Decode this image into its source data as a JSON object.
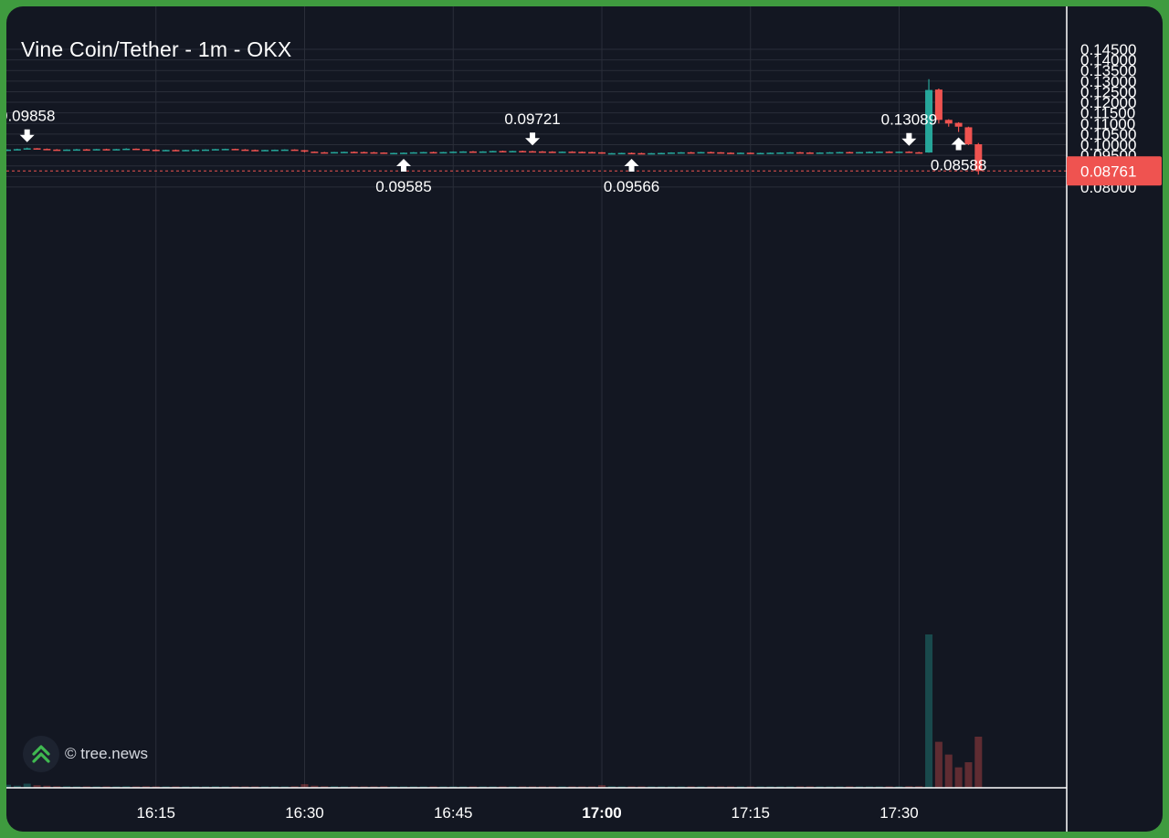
{
  "header": {
    "title": "Vine Coin/Tether - 1m - OKX"
  },
  "watermark": {
    "text": "© tree.news",
    "icon": "double-chevron-up-icon",
    "icon_color": "#3fb950"
  },
  "colors": {
    "background": "#131722",
    "frame": "#3f9b3f",
    "grid": "#2a2e39",
    "up": "#26a69a",
    "down": "#ef5350",
    "text": "#d1d4dc"
  },
  "chart_data": {
    "type": "candlestick",
    "timeframe": "1m",
    "x_ticks": [
      "16:15",
      "16:30",
      "16:45",
      "17:00",
      "17:15",
      "17:30"
    ],
    "x_tick_bold": "17:00",
    "y_ticks": [
      "0.14500",
      "0.14000",
      "0.13500",
      "0.13000",
      "0.12500",
      "0.12000",
      "0.11500",
      "0.11000",
      "0.10500",
      "0.10000",
      "0.09500",
      "0.09000",
      "0.08500",
      "0.08000"
    ],
    "y_range": [
      0.0753,
      0.147
    ],
    "current_price": {
      "value": 0.08761,
      "label": "0.08761"
    },
    "annotations": [
      {
        "label": "0.09858",
        "time": "16:02",
        "kind": "high"
      },
      {
        "label": "0.09585",
        "time": "16:40",
        "kind": "low"
      },
      {
        "label": "0.09721",
        "time": "16:53",
        "kind": "high"
      },
      {
        "label": "0.09566",
        "time": "17:03",
        "kind": "low"
      },
      {
        "label": "0.13089",
        "time": "17:31",
        "kind": "high"
      },
      {
        "label": "0.08588",
        "time": "17:36",
        "kind": "low"
      }
    ],
    "start_time": "16:00",
    "candles": [
      [
        0.0972,
        0.0978,
        0.097,
        0.0977,
        0.6
      ],
      [
        0.0977,
        0.0981,
        0.0975,
        0.0979,
        0.4
      ],
      [
        0.0979,
        0.0986,
        0.0978,
        0.0983,
        0.8
      ],
      [
        0.0983,
        0.0984,
        0.0979,
        0.098,
        0.5
      ],
      [
        0.098,
        0.0982,
        0.0976,
        0.0977,
        0.4
      ],
      [
        0.0977,
        0.0979,
        0.0974,
        0.0975,
        0.3
      ],
      [
        0.0975,
        0.0978,
        0.0973,
        0.0977,
        0.3
      ],
      [
        0.0977,
        0.098,
        0.0975,
        0.0978,
        0.2
      ],
      [
        0.0978,
        0.098,
        0.0976,
        0.0977,
        0.2
      ],
      [
        0.0977,
        0.098,
        0.0975,
        0.0979,
        0.2
      ],
      [
        0.0979,
        0.0981,
        0.0977,
        0.0978,
        0.2
      ],
      [
        0.0978,
        0.098,
        0.0976,
        0.0979,
        0.2
      ],
      [
        0.0979,
        0.0983,
        0.0978,
        0.0981,
        0.3
      ],
      [
        0.0981,
        0.0982,
        0.0977,
        0.0978,
        0.2
      ],
      [
        0.0978,
        0.0979,
        0.0975,
        0.0976,
        0.3
      ],
      [
        0.0976,
        0.0978,
        0.0973,
        0.0974,
        0.2
      ],
      [
        0.0974,
        0.0976,
        0.0972,
        0.0975,
        0.2
      ],
      [
        0.0975,
        0.0977,
        0.0973,
        0.0974,
        0.2
      ],
      [
        0.0974,
        0.0976,
        0.0972,
        0.0975,
        0.2
      ],
      [
        0.0975,
        0.0978,
        0.0973,
        0.0976,
        0.2
      ],
      [
        0.0976,
        0.0978,
        0.0974,
        0.0977,
        0.2
      ],
      [
        0.0977,
        0.098,
        0.0975,
        0.0979,
        0.3
      ],
      [
        0.0979,
        0.0981,
        0.0977,
        0.098,
        0.2
      ],
      [
        0.098,
        0.0981,
        0.0976,
        0.0977,
        0.2
      ],
      [
        0.0977,
        0.0979,
        0.0974,
        0.0975,
        0.2
      ],
      [
        0.0975,
        0.0977,
        0.0973,
        0.0974,
        0.2
      ],
      [
        0.0974,
        0.0976,
        0.0972,
        0.0975,
        0.2
      ],
      [
        0.0975,
        0.0977,
        0.0973,
        0.0976,
        0.2
      ],
      [
        0.0976,
        0.0978,
        0.0974,
        0.0977,
        0.2
      ],
      [
        0.0977,
        0.0978,
        0.0973,
        0.0974,
        0.3
      ],
      [
        0.0974,
        0.0975,
        0.0964,
        0.0967,
        0.7
      ],
      [
        0.0967,
        0.0968,
        0.0962,
        0.0964,
        0.4
      ],
      [
        0.0964,
        0.0966,
        0.0961,
        0.0962,
        0.3
      ],
      [
        0.0962,
        0.0966,
        0.0961,
        0.0965,
        0.3
      ],
      [
        0.0965,
        0.0967,
        0.0963,
        0.0966,
        0.2
      ],
      [
        0.0966,
        0.0968,
        0.0964,
        0.0965,
        0.2
      ],
      [
        0.0965,
        0.0967,
        0.0963,
        0.0964,
        0.2
      ],
      [
        0.0964,
        0.0966,
        0.0962,
        0.0963,
        0.2
      ],
      [
        0.0963,
        0.0964,
        0.0959,
        0.096,
        0.3
      ],
      [
        0.096,
        0.0962,
        0.0958,
        0.0961,
        0.2
      ],
      [
        0.0961,
        0.0963,
        0.0959,
        0.0962,
        0.2
      ],
      [
        0.0962,
        0.0965,
        0.0961,
        0.0964,
        0.2
      ],
      [
        0.0964,
        0.0966,
        0.0962,
        0.0965,
        0.2
      ],
      [
        0.0965,
        0.0967,
        0.0963,
        0.0964,
        0.2
      ],
      [
        0.0964,
        0.0966,
        0.0962,
        0.0965,
        0.2
      ],
      [
        0.0965,
        0.0968,
        0.0964,
        0.0967,
        0.2
      ],
      [
        0.0967,
        0.0969,
        0.0965,
        0.0968,
        0.2
      ],
      [
        0.0968,
        0.097,
        0.0966,
        0.0967,
        0.2
      ],
      [
        0.0967,
        0.0969,
        0.0965,
        0.0968,
        0.2
      ],
      [
        0.0968,
        0.0971,
        0.0967,
        0.097,
        0.2
      ],
      [
        0.097,
        0.0972,
        0.0968,
        0.0969,
        0.2
      ],
      [
        0.0969,
        0.0971,
        0.0967,
        0.097,
        0.2
      ],
      [
        0.097,
        0.0972,
        0.0968,
        0.0969,
        0.2
      ],
      [
        0.0969,
        0.0971,
        0.0967,
        0.0968,
        0.2
      ],
      [
        0.0968,
        0.097,
        0.0966,
        0.0967,
        0.2
      ],
      [
        0.0967,
        0.0969,
        0.0965,
        0.0966,
        0.2
      ],
      [
        0.0966,
        0.0968,
        0.0964,
        0.0967,
        0.2
      ],
      [
        0.0967,
        0.0969,
        0.0965,
        0.0966,
        0.2
      ],
      [
        0.0966,
        0.0968,
        0.0964,
        0.0965,
        0.2
      ],
      [
        0.0965,
        0.0967,
        0.0963,
        0.0964,
        0.2
      ],
      [
        0.0964,
        0.0965,
        0.0957,
        0.0958,
        0.5
      ],
      [
        0.0958,
        0.0961,
        0.0956,
        0.096,
        0.3
      ],
      [
        0.096,
        0.0962,
        0.0958,
        0.0961,
        0.2
      ],
      [
        0.0961,
        0.0963,
        0.0959,
        0.096,
        0.2
      ],
      [
        0.096,
        0.0962,
        0.0958,
        0.0959,
        0.2
      ],
      [
        0.0959,
        0.0961,
        0.0957,
        0.096,
        0.2
      ],
      [
        0.096,
        0.0962,
        0.0958,
        0.0961,
        0.2
      ],
      [
        0.0961,
        0.0964,
        0.096,
        0.0963,
        0.2
      ],
      [
        0.0963,
        0.0965,
        0.0961,
        0.0964,
        0.2
      ],
      [
        0.0964,
        0.0966,
        0.0962,
        0.0963,
        0.2
      ],
      [
        0.0963,
        0.0966,
        0.0962,
        0.0965,
        0.2
      ],
      [
        0.0965,
        0.0967,
        0.0963,
        0.0964,
        0.2
      ],
      [
        0.0964,
        0.0965,
        0.0961,
        0.0962,
        0.2
      ],
      [
        0.0962,
        0.0964,
        0.096,
        0.0961,
        0.2
      ],
      [
        0.0961,
        0.0963,
        0.0959,
        0.0962,
        0.2
      ],
      [
        0.0962,
        0.0963,
        0.0959,
        0.096,
        0.2
      ],
      [
        0.096,
        0.0962,
        0.0958,
        0.0961,
        0.2
      ],
      [
        0.0961,
        0.0963,
        0.0959,
        0.0962,
        0.2
      ],
      [
        0.0962,
        0.0964,
        0.096,
        0.0963,
        0.2
      ],
      [
        0.0963,
        0.0965,
        0.0961,
        0.0964,
        0.2
      ],
      [
        0.0964,
        0.0966,
        0.0962,
        0.0963,
        0.2
      ],
      [
        0.0963,
        0.0965,
        0.0961,
        0.0962,
        0.2
      ],
      [
        0.0962,
        0.0964,
        0.096,
        0.0963,
        0.2
      ],
      [
        0.0963,
        0.0965,
        0.0961,
        0.0964,
        0.2
      ],
      [
        0.0964,
        0.0966,
        0.0962,
        0.0965,
        0.2
      ],
      [
        0.0965,
        0.0967,
        0.0963,
        0.0964,
        0.2
      ],
      [
        0.0964,
        0.0966,
        0.0962,
        0.0965,
        0.2
      ],
      [
        0.0965,
        0.0968,
        0.0964,
        0.0966,
        0.2
      ],
      [
        0.0966,
        0.0968,
        0.0964,
        0.0967,
        0.2
      ],
      [
        0.0967,
        0.0969,
        0.0965,
        0.0966,
        0.2
      ],
      [
        0.0966,
        0.0968,
        0.0964,
        0.0967,
        0.2
      ],
      [
        0.0967,
        0.0969,
        0.0965,
        0.0964,
        0.3
      ],
      [
        0.0964,
        0.0966,
        0.0962,
        0.0963,
        0.3
      ],
      [
        0.0963,
        0.13089,
        0.0962,
        0.1258,
        30.0
      ],
      [
        0.126,
        0.1265,
        0.11,
        0.1117,
        9.0
      ],
      [
        0.1117,
        0.112,
        0.1085,
        0.11,
        6.5
      ],
      [
        0.1103,
        0.1106,
        0.106,
        0.1085,
        4.0
      ],
      [
        0.1082,
        0.1085,
        0.0998,
        0.1002,
        5.0
      ],
      [
        0.1002,
        0.1008,
        0.08588,
        0.08761,
        10.0
      ]
    ]
  }
}
